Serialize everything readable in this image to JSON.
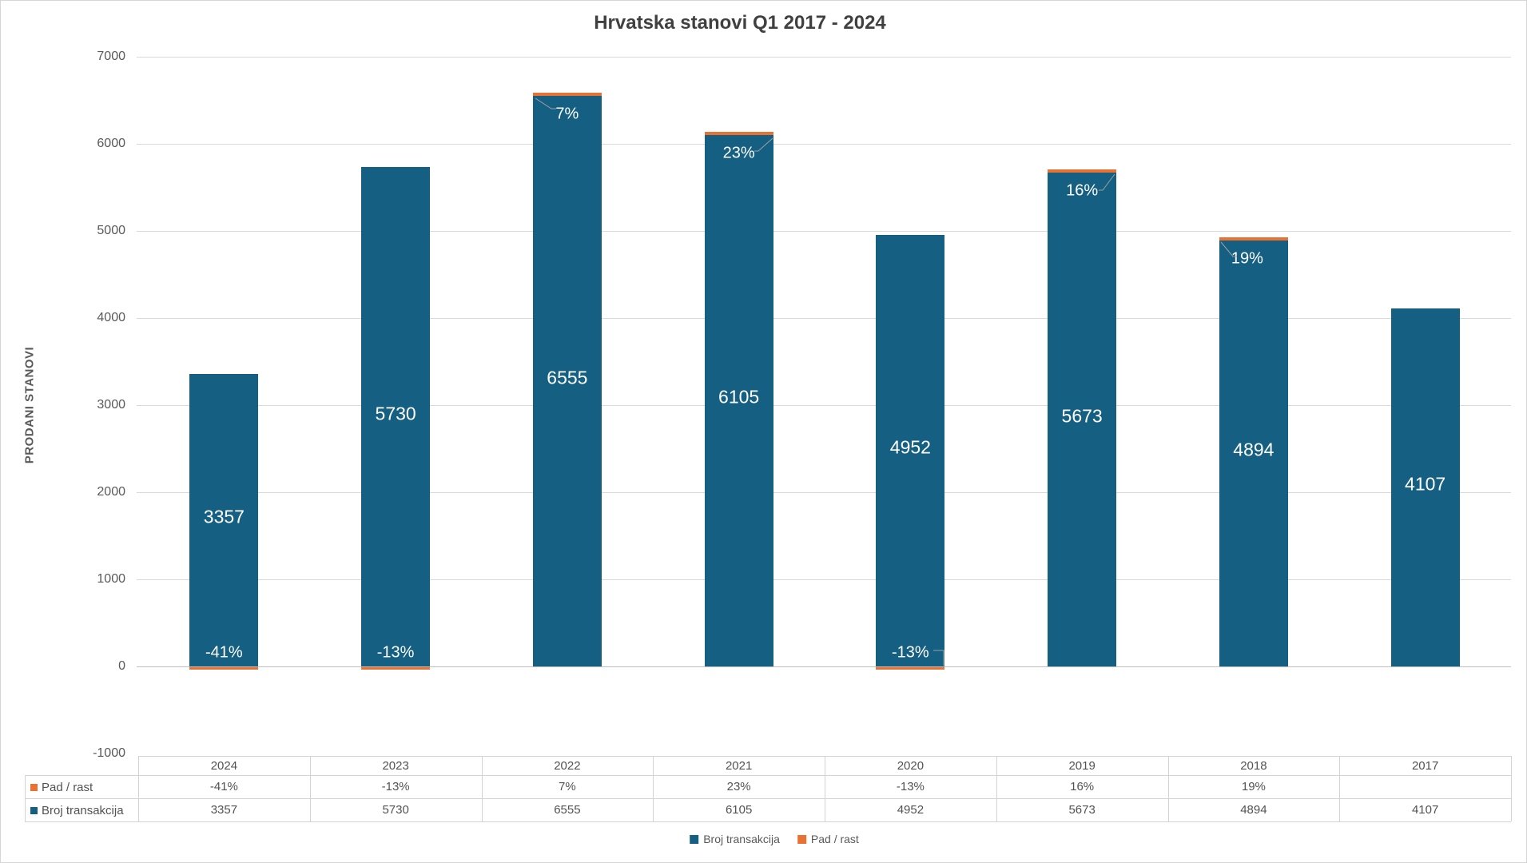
{
  "title": "Hrvatska stanovi Q1 2017 - 2024",
  "y_axis": {
    "label": "PRODANI STANOVI",
    "ticks": [
      7000,
      6000,
      5000,
      4000,
      3000,
      2000,
      1000,
      0,
      -1000
    ]
  },
  "chart_data": {
    "type": "bar",
    "title": "Hrvatska stanovi Q1 2017 - 2024",
    "categories": [
      "2024",
      "2023",
      "2022",
      "2021",
      "2020",
      "2019",
      "2018",
      "2017"
    ],
    "series": [
      {
        "name": "Broj transakcija",
        "color": "#156082",
        "values": [
          3357,
          5730,
          6555,
          6105,
          4952,
          5673,
          4894,
          4107
        ]
      },
      {
        "name": "Pad / rast",
        "color": "#E97132",
        "unit": "%",
        "values": [
          -41,
          -13,
          7,
          23,
          -13,
          16,
          19,
          null
        ],
        "labels": [
          "-41%",
          "-13%",
          "7%",
          "23%",
          "-13%",
          "16%",
          "19%",
          ""
        ]
      }
    ],
    "ylabel": "PRODANI STANOVI",
    "ylim": [
      -1000,
      7000
    ],
    "ytick_step": 1000,
    "grid": true,
    "legend_position": "bottom",
    "has_data_table": true
  },
  "data_table": {
    "columns": [
      "2024",
      "2023",
      "2022",
      "2021",
      "2020",
      "2019",
      "2018",
      "2017"
    ],
    "rows": [
      {
        "label": "Pad / rast",
        "swatch_color": "#E97132",
        "values": [
          "-41%",
          "-13%",
          "7%",
          "23%",
          "-13%",
          "16%",
          "19%",
          ""
        ]
      },
      {
        "label": "Broj transakcija",
        "swatch_color": "#156082",
        "values": [
          "3357",
          "5730",
          "6555",
          "6105",
          "4952",
          "5673",
          "4894",
          "4107"
        ]
      }
    ]
  },
  "legend": {
    "items": [
      {
        "label": "Broj transakcija",
        "color": "#156082"
      },
      {
        "label": "Pad / rast",
        "color": "#E97132"
      }
    ]
  },
  "colors": {
    "bar": "#156082",
    "accent": "#E97132",
    "gridline": "#D9D9D9",
    "zero_line": "#BFBFBF",
    "text": "#595959",
    "title_text": "#404040"
  }
}
